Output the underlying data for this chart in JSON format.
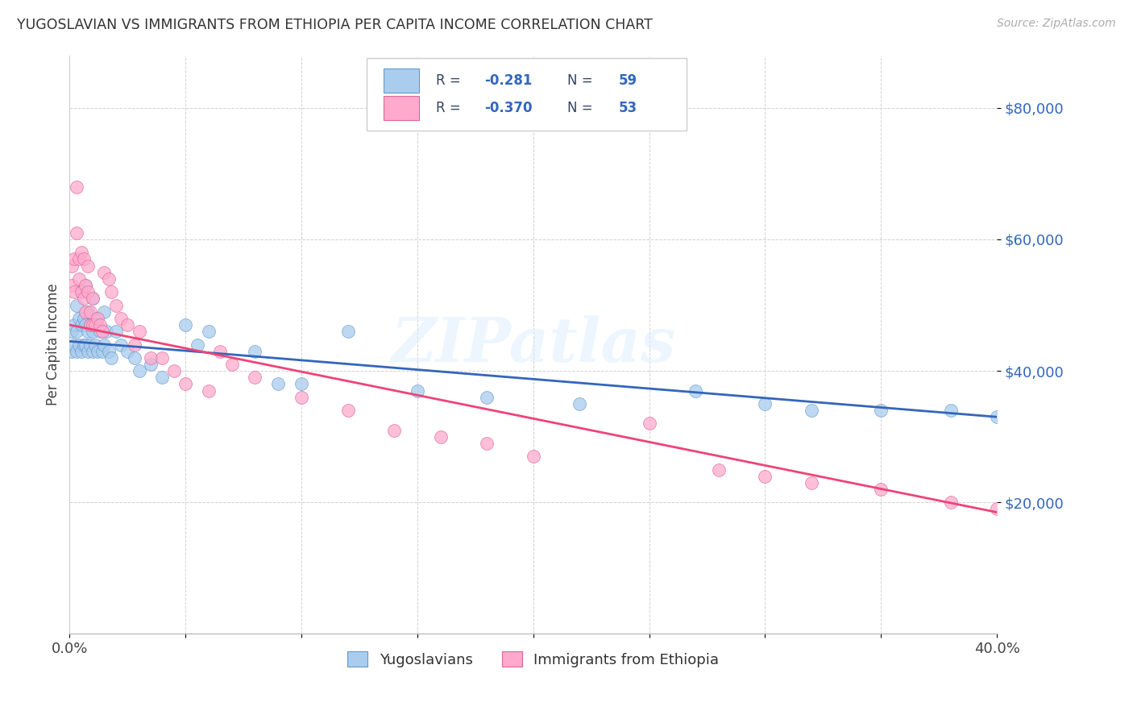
{
  "title": "YUGOSLAVIAN VS IMMIGRANTS FROM ETHIOPIA PER CAPITA INCOME CORRELATION CHART",
  "source": "Source: ZipAtlas.com",
  "ylabel": "Per Capita Income",
  "legend_labels": [
    "Yugoslavians",
    "Immigrants from Ethiopia"
  ],
  "blue_color": "#aaccee",
  "pink_color": "#ffaacc",
  "blue_line_color": "#3366bb",
  "pink_line_color": "#ee4477",
  "blue_scatter_edge": "#6699cc",
  "pink_scatter_edge": "#dd6699",
  "ytick_values": [
    20000,
    40000,
    60000,
    80000
  ],
  "blue_x": [
    0.001,
    0.001,
    0.002,
    0.002,
    0.003,
    0.003,
    0.003,
    0.004,
    0.004,
    0.005,
    0.005,
    0.005,
    0.006,
    0.006,
    0.007,
    0.007,
    0.007,
    0.008,
    0.008,
    0.008,
    0.009,
    0.009,
    0.01,
    0.01,
    0.01,
    0.011,
    0.011,
    0.012,
    0.012,
    0.013,
    0.014,
    0.015,
    0.015,
    0.016,
    0.017,
    0.018,
    0.02,
    0.022,
    0.025,
    0.028,
    0.03,
    0.035,
    0.04,
    0.05,
    0.055,
    0.06,
    0.08,
    0.09,
    0.1,
    0.12,
    0.15,
    0.18,
    0.22,
    0.27,
    0.3,
    0.32,
    0.35,
    0.38,
    0.4
  ],
  "blue_y": [
    46000,
    43000,
    47000,
    44000,
    50000,
    46000,
    43000,
    48000,
    44000,
    52000,
    47000,
    43000,
    48000,
    44000,
    53000,
    47000,
    44000,
    49000,
    46000,
    43000,
    47000,
    44000,
    51000,
    46000,
    43000,
    48000,
    44000,
    47000,
    43000,
    46000,
    43000,
    49000,
    44000,
    46000,
    43000,
    42000,
    46000,
    44000,
    43000,
    42000,
    40000,
    41000,
    39000,
    47000,
    44000,
    46000,
    43000,
    38000,
    38000,
    46000,
    37000,
    36000,
    35000,
    37000,
    35000,
    34000,
    34000,
    34000,
    33000
  ],
  "pink_x": [
    0.001,
    0.001,
    0.002,
    0.002,
    0.003,
    0.003,
    0.004,
    0.004,
    0.005,
    0.005,
    0.006,
    0.006,
    0.007,
    0.007,
    0.008,
    0.008,
    0.009,
    0.009,
    0.01,
    0.01,
    0.011,
    0.012,
    0.013,
    0.014,
    0.015,
    0.017,
    0.018,
    0.02,
    0.022,
    0.025,
    0.028,
    0.03,
    0.035,
    0.04,
    0.045,
    0.05,
    0.06,
    0.065,
    0.07,
    0.08,
    0.1,
    0.12,
    0.14,
    0.16,
    0.18,
    0.2,
    0.25,
    0.28,
    0.3,
    0.32,
    0.35,
    0.38,
    0.4
  ],
  "pink_y": [
    56000,
    53000,
    57000,
    52000,
    68000,
    61000,
    57000,
    54000,
    58000,
    52000,
    57000,
    51000,
    53000,
    49000,
    56000,
    52000,
    49000,
    47000,
    51000,
    47000,
    47000,
    48000,
    47000,
    46000,
    55000,
    54000,
    52000,
    50000,
    48000,
    47000,
    44000,
    46000,
    42000,
    42000,
    40000,
    38000,
    37000,
    43000,
    41000,
    39000,
    36000,
    34000,
    31000,
    30000,
    29000,
    27000,
    32000,
    25000,
    24000,
    23000,
    22000,
    20000,
    19000
  ],
  "xlim": [
    0.0,
    0.4
  ],
  "ylim": [
    0,
    88000
  ],
  "blue_line_y0": 44500,
  "blue_line_y1": 33000,
  "pink_line_y0": 47000,
  "pink_line_y1": 18500
}
